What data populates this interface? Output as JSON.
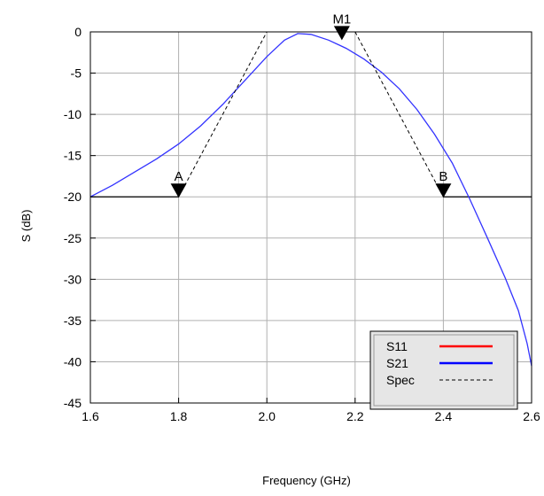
{
  "chart_data": {
    "type": "line",
    "xlabel": "Frequency (GHz)",
    "ylabel": "S (dB)",
    "xlim": [
      1.6,
      2.6
    ],
    "ylim": [
      -45,
      0
    ],
    "x_ticks": [
      "1.6",
      "1.8",
      "2.0",
      "2.2",
      "2.4",
      "2.6"
    ],
    "y_ticks": [
      "0",
      "-5",
      "-10",
      "-15",
      "-20",
      "-25",
      "-30",
      "-35",
      "-40",
      "-45"
    ],
    "grid": true,
    "legend_position": "bottom-right",
    "legend": [
      {
        "label": "S11",
        "color": "#ff0000",
        "style": "solid"
      },
      {
        "label": "S21",
        "color": "#0000ff",
        "style": "solid"
      },
      {
        "label": "Spec",
        "color": "#000000",
        "style": "dashed"
      }
    ],
    "series": [
      {
        "name": "S21",
        "color": "#3333ff",
        "points": [
          [
            1.6,
            -20.0
          ],
          [
            1.65,
            -18.6
          ],
          [
            1.7,
            -17.0
          ],
          [
            1.75,
            -15.4
          ],
          [
            1.8,
            -13.6
          ],
          [
            1.85,
            -11.4
          ],
          [
            1.9,
            -8.8
          ],
          [
            1.95,
            -5.9
          ],
          [
            2.0,
            -3.0
          ],
          [
            2.04,
            -1.0
          ],
          [
            2.07,
            -0.2
          ],
          [
            2.1,
            -0.3
          ],
          [
            2.14,
            -1.0
          ],
          [
            2.18,
            -2.0
          ],
          [
            2.22,
            -3.3
          ],
          [
            2.26,
            -4.9
          ],
          [
            2.3,
            -6.9
          ],
          [
            2.34,
            -9.4
          ],
          [
            2.38,
            -12.4
          ],
          [
            2.42,
            -15.9
          ],
          [
            2.46,
            -20.3
          ],
          [
            2.5,
            -25.0
          ],
          [
            2.54,
            -29.8
          ],
          [
            2.57,
            -33.8
          ],
          [
            2.59,
            -37.8
          ],
          [
            2.6,
            -40.5
          ]
        ]
      },
      {
        "name": "Spec",
        "color": "#000000",
        "style": "dashed",
        "segments": [
          [
            [
              1.8,
              -20.0
            ],
            [
              2.0,
              0.0
            ]
          ],
          [
            [
              2.2,
              0.0
            ],
            [
              2.4,
              -20.0
            ]
          ]
        ]
      }
    ],
    "horizontal_lines": [
      {
        "xrange": [
          1.6,
          1.8
        ],
        "y": -20
      },
      {
        "xrange": [
          2.4,
          2.6
        ],
        "y": -20
      }
    ],
    "markers": [
      {
        "label": "A",
        "x": 1.8,
        "y": -20
      },
      {
        "label": "M1",
        "x": 2.17,
        "y": -0.9
      },
      {
        "label": "B",
        "x": 2.4,
        "y": -20
      }
    ]
  }
}
